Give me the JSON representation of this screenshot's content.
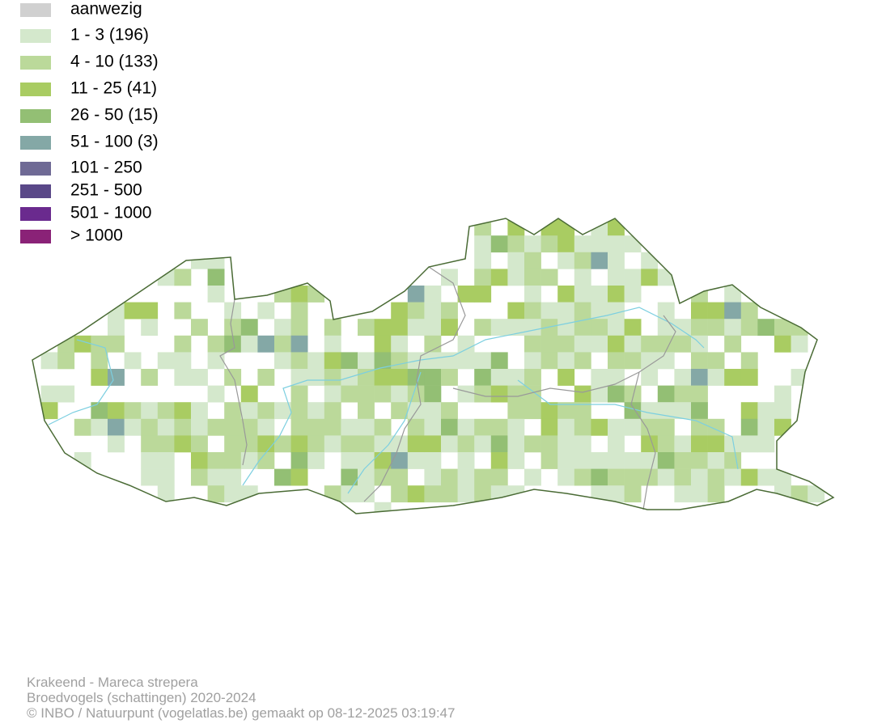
{
  "legend": {
    "items": [
      {
        "label": "aanwezig",
        "color": "#d0d0d0"
      },
      {
        "label": "1 - 3 (196)",
        "color": "#d4e8cc"
      },
      {
        "label": "4 - 10 (133)",
        "color": "#bbd99a"
      },
      {
        "label": "11 - 25 (41)",
        "color": "#a9cc62"
      },
      {
        "label": "26 - 50 (15)",
        "color": "#93bf74"
      },
      {
        "label": "51 - 100 (3)",
        "color": "#84a8a6"
      },
      {
        "label": "101 - 250",
        "color": "#6f6a95"
      },
      {
        "label": "251 - 500",
        "color": "#5a4888"
      },
      {
        "label": "501 - 1000",
        "color": "#6a2a8e"
      },
      {
        "label": "> 1000",
        "color": "#8a2277"
      }
    ]
  },
  "footer": {
    "lines": [
      "Krakeend - Mareca strepera",
      "Broedvogels (schattingen) 2020-2024",
      "© INBO / Natuurpunt (vogelatlas.be) gemaakt op 08-12-2025 03:19:47"
    ]
  }
}
